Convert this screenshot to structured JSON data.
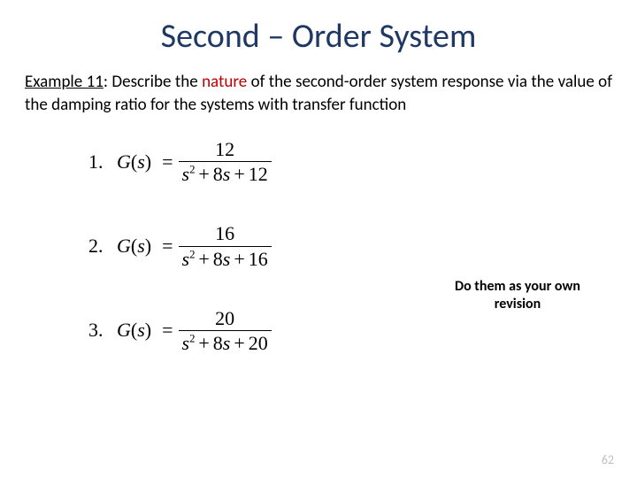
{
  "title": {
    "text": "Second – Order System",
    "color": "#1f3864",
    "fontsize": 38
  },
  "prompt": {
    "label_underlined": "Example 11",
    "colon": ": ",
    "before_nature": "Describe the ",
    "nature_word": "nature",
    "nature_color": "#c00000",
    "after_nature": " of the second-order system response via the value of the damping ratio for the systems with transfer function",
    "fontsize": 19
  },
  "equations": [
    {
      "index": "1.",
      "lhs": "G(s)",
      "numerator": "12",
      "denom_s2": "s",
      "denom_exp": "2",
      "denom_mid": " + 8s + 12"
    },
    {
      "index": "2.",
      "lhs": "G(s)",
      "numerator": "16",
      "denom_s2": "s",
      "denom_exp": "2",
      "denom_mid": " + 8s + 16"
    },
    {
      "index": "3.",
      "lhs": "G(s)",
      "numerator": "20",
      "denom_s2": "s",
      "denom_exp": "2",
      "denom_mid": " + 8s + 20"
    }
  ],
  "side_note": {
    "line1": "Do them as your own",
    "line2": "revision",
    "fontsize": 16
  },
  "page_number": "62",
  "colors": {
    "background": "#ffffff",
    "text": "#000000",
    "page_num": "#bfbfbf"
  }
}
